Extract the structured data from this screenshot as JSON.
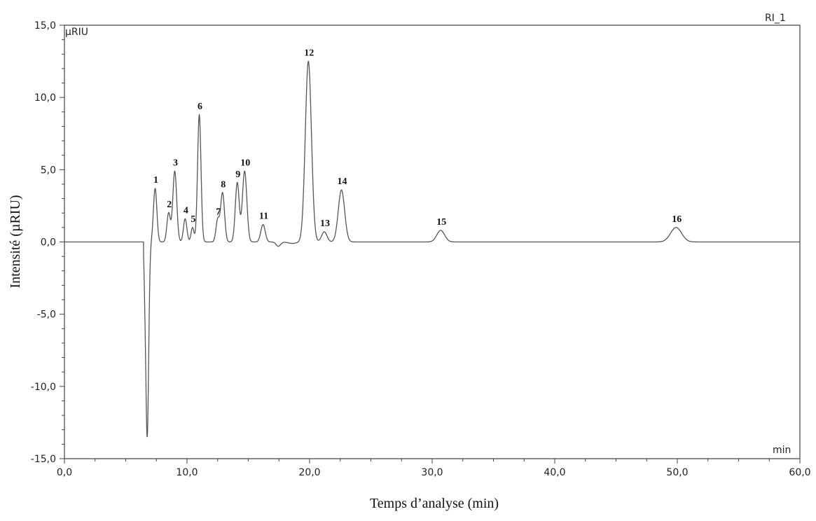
{
  "chart_data": {
    "type": "line",
    "channel_label": "RI_1",
    "y_unit_label": "µRIU",
    "x_unit_label": "min",
    "xlabel": "Temps d’analyse (min)",
    "ylabel": "Intensité (µRIU)",
    "xlim": [
      0,
      60
    ],
    "ylim": [
      -15,
      15
    ],
    "x_ticks": [
      0,
      10,
      20,
      30,
      40,
      50,
      60
    ],
    "x_tick_labels": [
      "0,0",
      "10,0",
      "20,0",
      "30,0",
      "40,0",
      "50,0",
      "60,0"
    ],
    "y_ticks": [
      15,
      10,
      5,
      0,
      -5,
      -10,
      -15
    ],
    "y_tick_labels": [
      "15,0",
      "10,0",
      "5,0",
      "0,0",
      "-5,0",
      "-10,0",
      "-15,0"
    ],
    "grid": false,
    "line_color": "#555555",
    "baseline_features": [
      {
        "x": 6.75,
        "y": -13.5,
        "width": 0.12
      },
      {
        "x": 6.55,
        "y": -1.2,
        "width": 0.06
      },
      {
        "x": 17.45,
        "y": -0.3,
        "width": 0.18
      },
      {
        "x": 18.6,
        "y": -0.1,
        "width": 0.35
      }
    ],
    "peaks": [
      {
        "label": "1",
        "x": 7.4,
        "y": 3.7,
        "width": 0.14
      },
      {
        "label": "2",
        "x": 8.5,
        "y": 2.0,
        "width": 0.14
      },
      {
        "label": "3",
        "x": 9.0,
        "y": 4.9,
        "width": 0.16
      },
      {
        "label": "4",
        "x": 9.85,
        "y": 1.6,
        "width": 0.14
      },
      {
        "label": "5",
        "x": 10.45,
        "y": 1.0,
        "width": 0.12
      },
      {
        "label": "6",
        "x": 11.0,
        "y": 8.8,
        "width": 0.14
      },
      {
        "label": "7",
        "x": 12.5,
        "y": 1.5,
        "width": 0.14
      },
      {
        "label": "8",
        "x": 12.9,
        "y": 3.4,
        "width": 0.16
      },
      {
        "label": "9",
        "x": 14.1,
        "y": 4.1,
        "width": 0.16
      },
      {
        "label": "10",
        "x": 14.7,
        "y": 4.9,
        "width": 0.18
      },
      {
        "label": "11",
        "x": 16.2,
        "y": 1.2,
        "width": 0.18
      },
      {
        "label": "12",
        "x": 19.9,
        "y": 12.5,
        "width": 0.25
      },
      {
        "label": "13",
        "x": 21.2,
        "y": 0.7,
        "width": 0.22
      },
      {
        "label": "14",
        "x": 22.6,
        "y": 3.6,
        "width": 0.26
      },
      {
        "label": "15",
        "x": 30.7,
        "y": 0.8,
        "width": 0.32
      },
      {
        "label": "16",
        "x": 49.9,
        "y": 1.0,
        "width": 0.45
      }
    ]
  }
}
